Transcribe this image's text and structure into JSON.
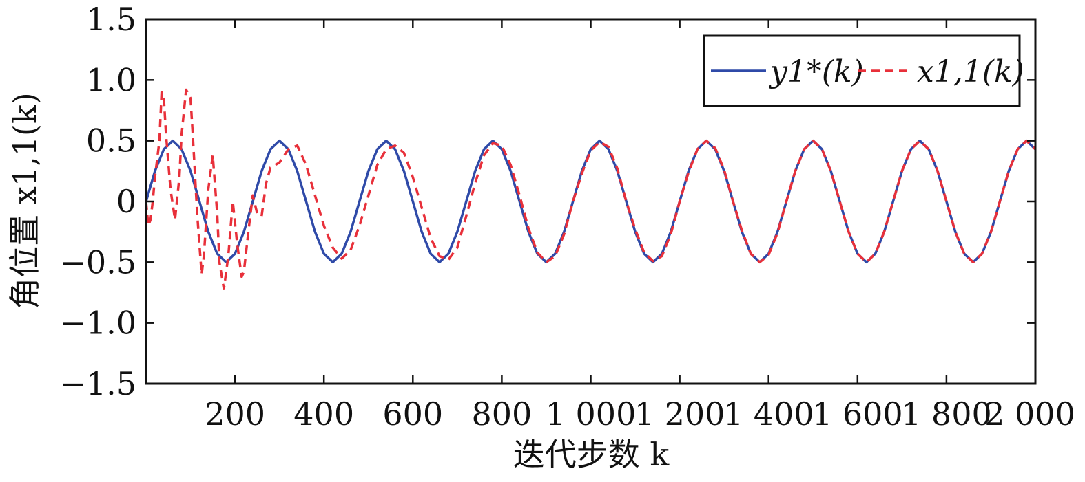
{
  "chart_data": {
    "type": "line",
    "xlabel": "迭代步数 k",
    "ylabel": "角位置 x1,1(k)",
    "xlim": [
      0,
      2000
    ],
    "ylim": [
      -1.5,
      1.5
    ],
    "x_ticks": [
      200,
      400,
      600,
      800,
      1000,
      1200,
      1400,
      1600,
      1800,
      2000
    ],
    "x_tick_labels": [
      "200",
      "400",
      "600",
      "800",
      "1 000",
      "1 200",
      "1 400",
      "1 600",
      "1 800",
      "2 000"
    ],
    "y_ticks": [
      1.5,
      1.0,
      0.5,
      0,
      -0.5,
      -1.0,
      -1.5
    ],
    "y_tick_labels": [
      "1.5",
      "1.0",
      "0.5",
      "0",
      "−0.5",
      "−1.0",
      "−1.5"
    ],
    "grid": false,
    "legend_position": "top-right",
    "series": [
      {
        "name": "y1*(k)",
        "color": "#2f4aa8",
        "style": "solid",
        "x": [
          0,
          20,
          40,
          60,
          80,
          100,
          120,
          140,
          160,
          180,
          200,
          220,
          240,
          260,
          280,
          300,
          320,
          340,
          360,
          380,
          400,
          420,
          440,
          460,
          480,
          500,
          520,
          540,
          560,
          580,
          600,
          620,
          640,
          660,
          680,
          700,
          720,
          740,
          760,
          780,
          800,
          820,
          840,
          860,
          880,
          900,
          920,
          940,
          960,
          980,
          1000,
          1020,
          1040,
          1060,
          1080,
          1100,
          1120,
          1140,
          1160,
          1180,
          1200,
          1220,
          1240,
          1260,
          1280,
          1300,
          1320,
          1340,
          1360,
          1380,
          1400,
          1420,
          1440,
          1460,
          1480,
          1500,
          1520,
          1540,
          1560,
          1580,
          1600,
          1620,
          1640,
          1660,
          1680,
          1700,
          1720,
          1740,
          1760,
          1780,
          1800,
          1820,
          1840,
          1860,
          1880,
          1900,
          1920,
          1940,
          1960,
          1980,
          2000
        ],
        "y": [
          0,
          0.25,
          0.43,
          0.5,
          0.43,
          0.25,
          0,
          -0.25,
          -0.43,
          -0.5,
          -0.43,
          -0.25,
          0,
          0.25,
          0.43,
          0.5,
          0.43,
          0.25,
          0,
          -0.25,
          -0.43,
          -0.5,
          -0.43,
          -0.25,
          0,
          0.25,
          0.43,
          0.5,
          0.43,
          0.25,
          0,
          -0.25,
          -0.43,
          -0.5,
          -0.43,
          -0.25,
          0,
          0.25,
          0.43,
          0.5,
          0.43,
          0.25,
          0,
          -0.25,
          -0.43,
          -0.5,
          -0.43,
          -0.25,
          0,
          0.25,
          0.43,
          0.5,
          0.43,
          0.25,
          0,
          -0.25,
          -0.43,
          -0.5,
          -0.43,
          -0.25,
          0,
          0.25,
          0.43,
          0.5,
          0.43,
          0.25,
          0,
          -0.25,
          -0.43,
          -0.5,
          -0.43,
          -0.25,
          0,
          0.25,
          0.43,
          0.5,
          0.43,
          0.25,
          0,
          -0.25,
          -0.43,
          -0.5,
          -0.43,
          -0.25,
          0,
          0.25,
          0.43,
          0.5,
          0.43,
          0.25,
          0,
          -0.25,
          -0.43,
          -0.5,
          -0.43,
          -0.25,
          0,
          0.25,
          0.43,
          0.5,
          0.43
        ]
      },
      {
        "name": "x1,1(k)",
        "color": "#e8303a",
        "style": "dashed",
        "x": [
          0,
          5,
          10,
          15,
          20,
          30,
          35,
          40,
          45,
          55,
          65,
          75,
          80,
          90,
          100,
          105,
          115,
          125,
          130,
          140,
          150,
          160,
          165,
          175,
          185,
          195,
          205,
          215,
          220,
          230,
          240,
          250,
          260,
          270,
          280,
          300,
          320,
          340,
          360,
          380,
          400,
          420,
          440,
          460,
          480,
          500,
          520,
          540,
          560,
          580,
          600,
          620,
          640,
          660,
          680,
          700,
          720,
          740,
          760,
          780,
          800,
          820,
          840,
          860,
          880,
          900,
          920,
          940,
          960,
          980,
          1000,
          1020,
          1040,
          1060,
          1080,
          1100,
          1120,
          1140,
          1160,
          1180,
          1200,
          1220,
          1240,
          1260,
          1280,
          1300,
          1320,
          1340,
          1360,
          1380,
          1400,
          1420,
          1440,
          1460,
          1480,
          1500,
          1520,
          1540,
          1560,
          1580,
          1600,
          1620,
          1640,
          1660,
          1680,
          1700,
          1720,
          1740,
          1760,
          1780,
          1800,
          1820,
          1840,
          1860,
          1880,
          1900,
          1920,
          1940,
          1960,
          1980,
          2000
        ],
        "y": [
          0,
          -0.2,
          -0.15,
          0,
          0.2,
          0.5,
          0.9,
          0.85,
          0.55,
          0.1,
          -0.15,
          0.2,
          0.55,
          0.92,
          0.85,
          0.55,
          -0.1,
          -0.6,
          -0.45,
          0.1,
          0.38,
          -0.1,
          -0.5,
          -0.72,
          -0.45,
          0,
          -0.35,
          -0.62,
          -0.58,
          -0.25,
          0.05,
          -0.1,
          -0.12,
          0.15,
          0.28,
          0.32,
          0.43,
          0.46,
          0.3,
          0.05,
          -0.2,
          -0.38,
          -0.47,
          -0.4,
          -0.2,
          0.05,
          0.3,
          0.43,
          0.46,
          0.4,
          0.2,
          -0.05,
          -0.3,
          -0.45,
          -0.48,
          -0.38,
          -0.12,
          0.15,
          0.38,
          0.48,
          0.46,
          0.3,
          0.05,
          -0.22,
          -0.42,
          -0.5,
          -0.45,
          -0.27,
          0,
          0.23,
          0.42,
          0.49,
          0.45,
          0.27,
          0,
          -0.23,
          -0.42,
          -0.49,
          -0.45,
          -0.27,
          0,
          0.24,
          0.43,
          0.5,
          0.44,
          0.26,
          0,
          -0.24,
          -0.43,
          -0.5,
          -0.44,
          -0.26,
          0,
          0.25,
          0.43,
          0.5,
          0.43,
          0.25,
          0,
          -0.25,
          -0.43,
          -0.5,
          -0.43,
          -0.25,
          0,
          0.25,
          0.43,
          0.5,
          0.43,
          0.25,
          0,
          -0.25,
          -0.43,
          -0.5,
          -0.43,
          -0.25,
          0,
          0.25,
          0.43,
          0.5,
          0.43
        ]
      }
    ]
  }
}
